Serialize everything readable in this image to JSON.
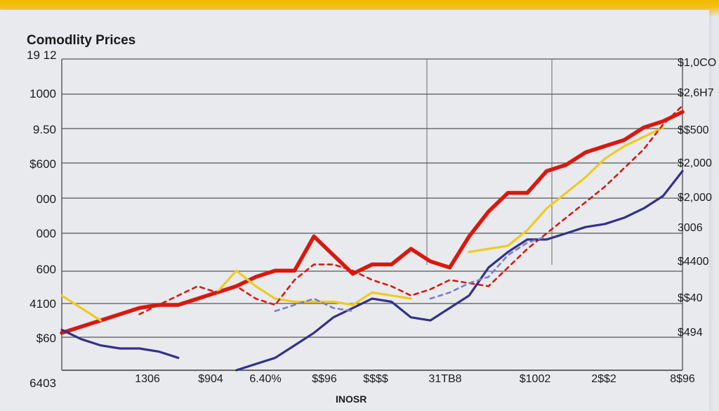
{
  "chart_data": {
    "type": "line",
    "title": "Comodlity Prices",
    "subtitle": "19 12",
    "xlabel": "INOSR",
    "ylabel": "",
    "grid": true,
    "left_axis_labels": [
      "1000",
      "9.50",
      "$600",
      "000",
      "000",
      "600",
      "4100",
      "$60",
      "6403"
    ],
    "right_axis_labels": [
      "$1,0CO",
      "$2,6H7",
      "$$500",
      "$2,000",
      "$2,000",
      "3006",
      "$4400",
      "$$40",
      "$494"
    ],
    "x_tick_labels": [
      "1306",
      "$904",
      "6.40%",
      "$$96",
      "$$$$",
      "31TB8",
      "$1002",
      "2$$2",
      "8$96"
    ],
    "x": [
      0,
      1,
      2,
      3,
      4,
      5,
      6,
      7,
      8,
      9,
      10,
      11,
      12,
      13,
      14,
      15,
      16,
      17,
      18,
      19,
      20,
      21,
      22,
      23,
      24,
      25,
      26,
      27,
      28,
      29,
      30,
      31,
      32
    ],
    "xlim": [
      0,
      32
    ],
    "ylim": [
      0,
      100
    ],
    "series": [
      {
        "color": "#d7190f",
        "style": "solid-thick",
        "values": [
          12,
          14,
          16,
          18,
          20,
          21,
          21,
          23,
          25,
          27,
          30,
          32,
          32,
          43,
          37,
          31,
          34,
          34,
          39,
          35,
          33,
          43,
          51,
          57,
          57,
          64,
          66,
          70,
          72,
          74,
          78,
          80,
          83
        ]
      },
      {
        "color": "#eecb20",
        "style": "solid",
        "values": [
          24,
          20,
          16,
          null,
          null,
          null,
          null,
          null,
          25,
          32,
          27,
          23,
          22,
          22,
          22,
          21,
          25,
          24,
          23,
          null,
          null,
          38,
          39,
          40,
          45,
          52,
          57,
          62,
          68,
          72,
          75,
          78,
          null
        ]
      },
      {
        "color": "#d7190f",
        "style": "dashed",
        "values": [
          null,
          null,
          null,
          null,
          18,
          21,
          24,
          27,
          25,
          27,
          23,
          21,
          29,
          34,
          34,
          32,
          29,
          27,
          24,
          26,
          29,
          28,
          27,
          33,
          39,
          44,
          49,
          54,
          59,
          65,
          71,
          79,
          85
        ]
      },
      {
        "color": "#32318a",
        "style": "solid",
        "values": [
          13,
          10,
          8,
          7,
          7,
          6,
          4,
          null,
          null,
          0,
          2,
          4,
          8,
          12,
          17,
          20,
          23,
          22,
          17,
          16,
          20,
          24,
          33,
          38,
          42,
          42,
          44,
          46,
          47,
          49,
          52,
          56,
          64
        ]
      },
      {
        "color": "#7a7fc4",
        "style": "dashed",
        "values": [
          null,
          null,
          null,
          null,
          null,
          null,
          null,
          null,
          null,
          null,
          null,
          19,
          21,
          23,
          20,
          19,
          null,
          null,
          null,
          23,
          25,
          28,
          30,
          37,
          41,
          43,
          null,
          null,
          null,
          null,
          null,
          null,
          null
        ]
      }
    ]
  }
}
